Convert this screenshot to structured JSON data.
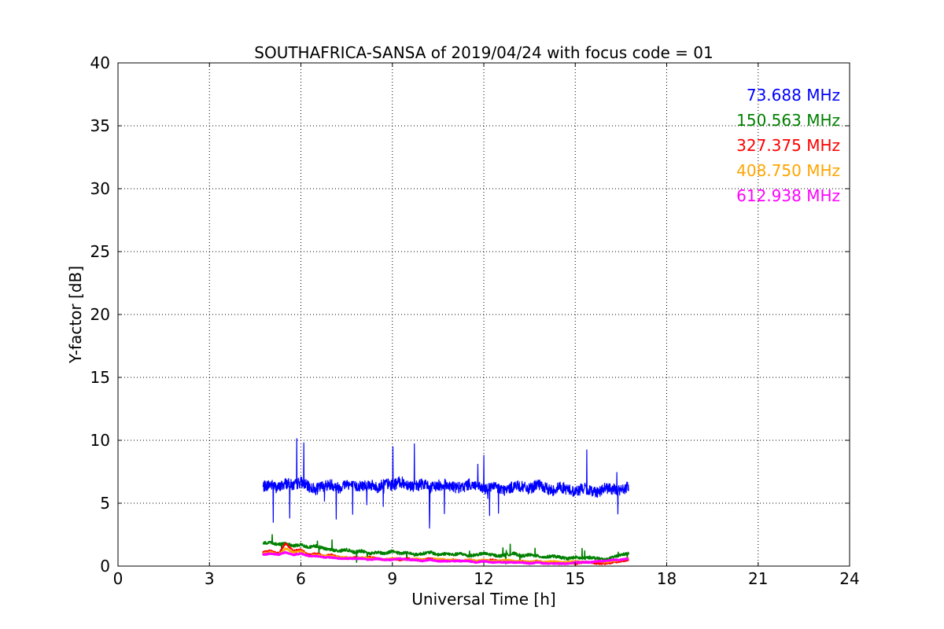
{
  "chart_data": {
    "type": "line",
    "title": "SOUTHAFRICA-SANSA of 2019/04/24 with focus code = 01",
    "xlabel": "Universal Time [h]",
    "ylabel": "Y-factor [dB]",
    "xlim": [
      0,
      24
    ],
    "ylim": [
      0,
      40
    ],
    "xticks": [
      0,
      3,
      6,
      9,
      12,
      15,
      18,
      21,
      24
    ],
    "yticks": [
      0,
      5,
      10,
      15,
      20,
      25,
      30,
      35,
      40
    ],
    "xtick_labels": [
      "0",
      "3",
      "6",
      "9",
      "12",
      "15",
      "18",
      "21",
      "24"
    ],
    "ytick_labels": [
      "0",
      "5",
      "10",
      "15",
      "20",
      "25",
      "30",
      "35",
      "40"
    ],
    "grid": true,
    "legend_position": "top-right",
    "series": [
      {
        "name": "73.688 MHz",
        "color": "#0000ff",
        "x": [
          4.75,
          5.0,
          5.25,
          5.5,
          5.75,
          6.0,
          6.25,
          6.5,
          6.75,
          7.0,
          7.25,
          7.5,
          7.75,
          8.0,
          8.25,
          8.5,
          8.75,
          9.0,
          9.25,
          9.5,
          9.75,
          10.0,
          10.25,
          10.5,
          10.75,
          11.0,
          11.25,
          11.5,
          11.75,
          12.0,
          12.25,
          12.5,
          12.75,
          13.0,
          13.25,
          13.5,
          13.75,
          14.0,
          14.25,
          14.5,
          14.75,
          15.0,
          15.25,
          15.5,
          15.75,
          16.0,
          16.25,
          16.5,
          16.75
        ],
        "values": [
          6.3,
          6.5,
          6.2,
          6.6,
          6.4,
          6.7,
          6.3,
          6.1,
          6.4,
          6.5,
          6.2,
          6.6,
          6.3,
          6.4,
          6.5,
          6.2,
          6.6,
          6.4,
          6.7,
          6.5,
          6.3,
          6.6,
          6.2,
          6.4,
          6.5,
          6.3,
          6.2,
          6.5,
          6.4,
          6.1,
          6.3,
          6.2,
          6.0,
          6.4,
          6.3,
          6.1,
          6.5,
          6.2,
          6.0,
          6.3,
          6.1,
          5.9,
          6.2,
          6.0,
          5.9,
          6.2,
          6.1,
          6.0,
          6.3
        ]
      },
      {
        "name": "150.563 MHz",
        "color": "#008000",
        "x": [
          4.75,
          5.0,
          5.25,
          5.5,
          5.75,
          6.0,
          6.25,
          6.5,
          6.75,
          7.0,
          7.25,
          7.5,
          7.75,
          8.0,
          8.25,
          8.5,
          8.75,
          9.0,
          9.25,
          9.5,
          9.75,
          10.0,
          10.25,
          10.5,
          10.75,
          11.0,
          11.25,
          11.5,
          11.75,
          12.0,
          12.25,
          12.5,
          12.75,
          13.0,
          13.25,
          13.5,
          13.75,
          14.0,
          14.25,
          14.5,
          14.75,
          15.0,
          15.25,
          15.5,
          15.75,
          16.0,
          16.25,
          16.5,
          16.75
        ],
        "values": [
          1.8,
          1.9,
          1.7,
          1.8,
          1.6,
          1.7,
          1.5,
          1.6,
          1.4,
          1.3,
          1.2,
          1.3,
          1.1,
          1.2,
          1.0,
          1.1,
          1.0,
          1.2,
          1.0,
          1.1,
          0.9,
          1.0,
          1.1,
          0.9,
          1.0,
          0.9,
          1.0,
          0.8,
          0.9,
          1.0,
          0.9,
          0.8,
          0.9,
          1.0,
          0.8,
          0.9,
          0.8,
          0.7,
          0.8,
          0.7,
          0.6,
          0.7,
          0.6,
          0.7,
          0.6,
          0.5,
          0.7,
          0.9,
          1.0
        ]
      },
      {
        "name": "327.375 MHz",
        "color": "#ff0000",
        "x": [
          4.75,
          5.0,
          5.25,
          5.5,
          5.75,
          6.0,
          6.25,
          6.5,
          6.75,
          7.0,
          7.25,
          7.5,
          7.75,
          8.0,
          8.25,
          8.5,
          8.75,
          9.0,
          9.25,
          9.5,
          9.75,
          10.0,
          10.25,
          10.5,
          10.75,
          11.0,
          11.25,
          11.5,
          11.75,
          12.0,
          12.25,
          12.5,
          12.75,
          13.0,
          13.25,
          13.5,
          13.75,
          14.0,
          14.25,
          14.5,
          14.75,
          15.0,
          15.25,
          15.5,
          15.75,
          16.0,
          16.25,
          16.5,
          16.75
        ],
        "values": [
          1.1,
          1.2,
          1.0,
          1.8,
          1.2,
          1.3,
          0.9,
          1.0,
          0.8,
          0.9,
          0.7,
          0.6,
          0.7,
          0.6,
          0.7,
          0.6,
          0.5,
          0.6,
          0.5,
          0.6,
          0.5,
          0.5,
          0.6,
          0.5,
          0.4,
          0.5,
          0.4,
          0.5,
          0.4,
          0.4,
          0.5,
          0.4,
          0.4,
          0.3,
          0.4,
          0.3,
          0.4,
          0.3,
          0.3,
          0.2,
          0.3,
          0.2,
          0.3,
          0.3,
          0.2,
          0.2,
          0.3,
          0.4,
          0.5
        ]
      },
      {
        "name": "408.750 MHz",
        "color": "#ffa500",
        "x": [
          4.75,
          5.0,
          5.25,
          5.5,
          5.75,
          6.0,
          6.25,
          6.5,
          6.75,
          7.0,
          7.25,
          7.5,
          7.75,
          8.0,
          8.25,
          8.5,
          8.75,
          9.0,
          9.25,
          9.5,
          9.75,
          10.0,
          10.25,
          10.5,
          10.75,
          11.0,
          11.25,
          11.5,
          11.75,
          12.0,
          12.25,
          12.5,
          12.75,
          13.0,
          13.25,
          13.5,
          13.75,
          14.0,
          14.25,
          14.5,
          14.75,
          15.0,
          15.25,
          15.5,
          15.75,
          16.0,
          16.25,
          16.5,
          16.75
        ],
        "values": [
          1.0,
          1.1,
          0.9,
          1.4,
          1.1,
          1.2,
          0.8,
          0.9,
          0.8,
          0.8,
          0.7,
          0.7,
          0.6,
          0.7,
          0.6,
          0.6,
          0.5,
          0.6,
          0.6,
          0.5,
          0.6,
          0.5,
          0.5,
          0.6,
          0.5,
          0.5,
          0.4,
          0.5,
          0.4,
          0.5,
          0.4,
          0.4,
          0.5,
          0.4,
          0.4,
          0.3,
          0.4,
          0.3,
          0.4,
          0.3,
          0.3,
          0.4,
          0.3,
          0.3,
          0.4,
          0.3,
          0.4,
          0.5,
          0.6
        ]
      },
      {
        "name": "612.938 MHz",
        "color": "#ff00ff",
        "x": [
          4.75,
          5.0,
          5.25,
          5.5,
          5.75,
          6.0,
          6.25,
          6.5,
          6.75,
          7.0,
          7.25,
          7.5,
          7.75,
          8.0,
          8.25,
          8.5,
          8.75,
          9.0,
          9.25,
          9.5,
          9.75,
          10.0,
          10.25,
          10.5,
          10.75,
          11.0,
          11.25,
          11.5,
          11.75,
          12.0,
          12.25,
          12.5,
          12.75,
          13.0,
          13.25,
          13.5,
          13.75,
          14.0,
          14.25,
          14.5,
          14.75,
          15.0,
          15.25,
          15.5,
          15.75,
          16.0,
          16.25,
          16.5,
          16.75
        ],
        "values": [
          0.9,
          1.0,
          0.9,
          1.1,
          0.9,
          1.0,
          0.8,
          0.8,
          0.7,
          0.7,
          0.6,
          0.6,
          0.6,
          0.6,
          0.5,
          0.6,
          0.5,
          0.5,
          0.6,
          0.5,
          0.5,
          0.4,
          0.5,
          0.4,
          0.4,
          0.4,
          0.4,
          0.4,
          0.3,
          0.4,
          0.3,
          0.3,
          0.3,
          0.3,
          0.3,
          0.2,
          0.3,
          0.2,
          0.2,
          0.2,
          0.2,
          0.3,
          0.3,
          0.3,
          0.4,
          0.4,
          0.5,
          0.5,
          0.6
        ]
      }
    ]
  }
}
